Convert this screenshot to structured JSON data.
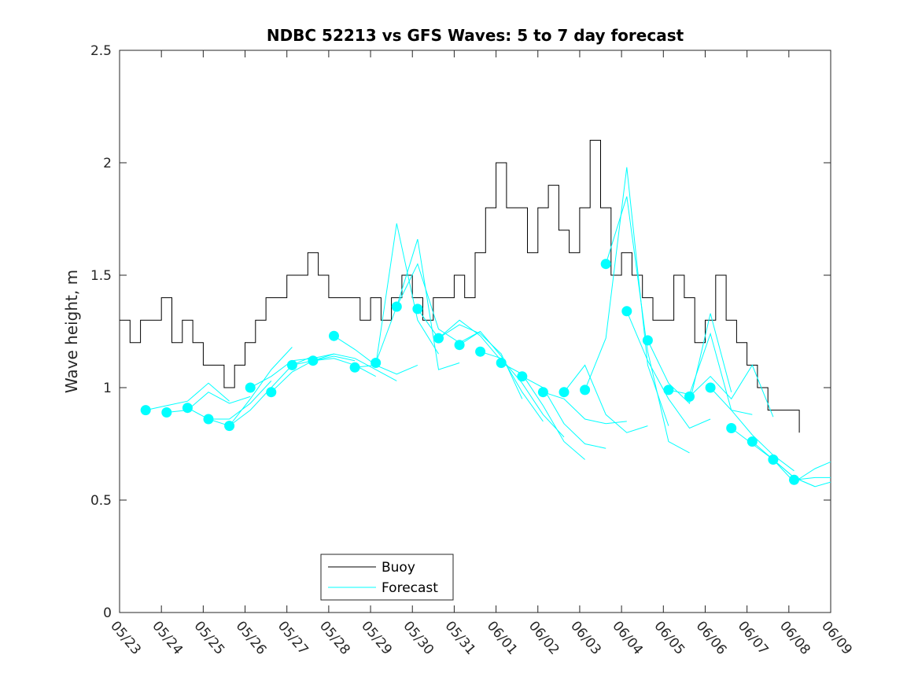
{
  "chart_data": {
    "type": "line",
    "title": "NDBC 52213 vs GFS Waves: 5 to 7 day forecast",
    "xlabel": "",
    "ylabel": "Wave height, m",
    "ylim": [
      0,
      2.5
    ],
    "yticks": [
      "0",
      "0.5",
      "1",
      "1.5",
      "2",
      "2.5"
    ],
    "xlim": [
      "05/23",
      "06/09"
    ],
    "xtick_labels": [
      "05/23",
      "05/24",
      "05/25",
      "05/26",
      "05/27",
      "05/28",
      "05/29",
      "05/30",
      "05/31",
      "06/01",
      "06/02",
      "06/03",
      "06/04",
      "06/05",
      "06/06",
      "06/07",
      "06/08",
      "06/09"
    ],
    "grid": false,
    "legend": {
      "placement": "bottom-left",
      "entries": [
        "Buoy",
        "Forecast"
      ]
    },
    "colors": {
      "buoy": "#000000",
      "forecast": "#00FFFF"
    },
    "buoy": {
      "name": "Buoy",
      "x": [
        "05/23 00:00",
        "05/23 06:00",
        "05/23 12:00",
        "05/23 18:00",
        "05/24 00:00",
        "05/24 06:00",
        "05/24 12:00",
        "05/24 18:00",
        "05/25 00:00",
        "05/25 06:00",
        "05/25 12:00",
        "05/25 18:00",
        "05/26 00:00",
        "05/26 06:00",
        "05/26 12:00",
        "05/26 18:00",
        "05/27 00:00",
        "05/27 06:00",
        "05/27 12:00",
        "05/27 18:00",
        "05/28 00:00",
        "05/28 06:00",
        "05/28 12:00",
        "05/28 18:00",
        "05/29 00:00",
        "05/29 06:00",
        "05/29 12:00",
        "05/29 18:00",
        "05/30 00:00",
        "05/30 06:00",
        "05/30 12:00",
        "05/30 18:00",
        "05/31 00:00",
        "05/31 06:00",
        "05/31 12:00",
        "05/31 18:00",
        "06/01 00:00",
        "06/01 06:00",
        "06/01 12:00",
        "06/01 18:00",
        "06/02 00:00",
        "06/02 06:00",
        "06/02 12:00",
        "06/02 18:00",
        "06/03 00:00",
        "06/03 06:00",
        "06/03 12:00",
        "06/03 18:00",
        "06/04 00:00",
        "06/04 06:00",
        "06/04 12:00",
        "06/04 18:00",
        "06/05 00:00",
        "06/05 06:00",
        "06/05 12:00",
        "06/05 18:00",
        "06/06 00:00",
        "06/06 06:00",
        "06/06 12:00",
        "06/06 18:00",
        "06/07 00:00",
        "06/07 06:00",
        "06/07 12:00",
        "06/07 18:00",
        "06/08 00:00",
        "06/08 06:00"
      ],
      "y": [
        1.3,
        1.2,
        1.3,
        1.3,
        1.4,
        1.2,
        1.3,
        1.2,
        1.1,
        1.1,
        1.0,
        1.1,
        1.2,
        1.3,
        1.4,
        1.4,
        1.5,
        1.5,
        1.6,
        1.5,
        1.4,
        1.4,
        1.4,
        1.3,
        1.4,
        1.3,
        1.4,
        1.5,
        1.4,
        1.3,
        1.4,
        1.4,
        1.5,
        1.4,
        1.6,
        1.8,
        2.0,
        1.8,
        1.8,
        1.6,
        1.8,
        1.9,
        1.7,
        1.6,
        1.8,
        2.1,
        1.8,
        1.5,
        1.6,
        1.5,
        1.4,
        1.3,
        1.3,
        1.5,
        1.4,
        1.2,
        1.3,
        1.5,
        1.3,
        1.2,
        1.1,
        1.0,
        0.9,
        0.9,
        0.9,
        0.8
      ]
    },
    "forecast": {
      "name": "Forecast",
      "markers": {
        "x": [
          "05/23 15:00",
          "05/24 03:00",
          "05/24 15:00",
          "05/25 03:00",
          "05/25 15:00",
          "05/26 03:00",
          "05/26 15:00",
          "05/27 03:00",
          "05/27 15:00",
          "05/28 03:00",
          "05/28 15:00",
          "05/29 03:00",
          "05/29 15:00",
          "05/30 03:00",
          "05/30 15:00",
          "05/31 03:00",
          "05/31 15:00",
          "06/01 03:00",
          "06/01 15:00",
          "06/02 03:00",
          "06/02 15:00",
          "06/03 03:00",
          "06/03 15:00",
          "06/04 03:00",
          "06/04 15:00",
          "06/05 03:00",
          "06/05 15:00",
          "06/06 03:00",
          "06/06 15:00",
          "06/07 03:00",
          "06/07 15:00",
          "06/08 03:00"
        ],
        "y": [
          0.9,
          0.89,
          0.91,
          0.86,
          0.83,
          1.0,
          0.98,
          1.1,
          1.12,
          1.23,
          1.09,
          1.11,
          1.36,
          1.35,
          1.22,
          1.19,
          1.16,
          1.11,
          1.05,
          0.98,
          0.98,
          0.99,
          1.55,
          1.34,
          1.21,
          0.99,
          0.96,
          1.0,
          0.82,
          0.76,
          0.68,
          0.59
        ]
      },
      "runs": [
        {
          "x": [
            "05/23 15:00",
            "05/24 03:00",
            "05/24 15:00",
            "05/25 03:00",
            "05/25 15:00"
          ],
          "y": [
            0.9,
            0.92,
            0.94,
            1.02,
            0.94
          ]
        },
        {
          "x": [
            "05/24 03:00",
            "05/24 15:00",
            "05/25 03:00",
            "05/25 15:00",
            "05/26 03:00"
          ],
          "y": [
            0.89,
            0.9,
            0.98,
            0.93,
            0.96
          ]
        },
        {
          "x": [
            "05/24 15:00",
            "05/25 03:00",
            "05/25 15:00",
            "05/26 03:00",
            "05/26 15:00"
          ],
          "y": [
            0.91,
            0.86,
            0.86,
            0.93,
            1.03
          ]
        },
        {
          "x": [
            "05/25 03:00",
            "05/25 15:00",
            "05/26 03:00",
            "05/26 15:00",
            "05/27 03:00"
          ],
          "y": [
            0.86,
            0.83,
            0.95,
            1.08,
            1.18
          ]
        },
        {
          "x": [
            "05/25 15:00",
            "05/26 03:00",
            "05/26 15:00",
            "05/27 03:00",
            "05/27 15:00"
          ],
          "y": [
            0.83,
            0.9,
            1.0,
            1.1,
            1.14
          ]
        },
        {
          "x": [
            "05/26 03:00",
            "05/26 15:00",
            "05/27 03:00",
            "05/27 15:00",
            "05/28 03:00"
          ],
          "y": [
            1.0,
            1.05,
            1.12,
            1.13,
            1.15
          ]
        },
        {
          "x": [
            "05/26 15:00",
            "05/27 03:00",
            "05/27 15:00",
            "05/28 03:00",
            "05/28 15:00"
          ],
          "y": [
            0.98,
            1.07,
            1.12,
            1.14,
            1.12
          ]
        },
        {
          "x": [
            "05/27 03:00",
            "05/27 15:00",
            "05/28 03:00",
            "05/28 15:00",
            "05/29 03:00"
          ],
          "y": [
            1.1,
            1.12,
            1.13,
            1.1,
            1.05
          ]
        },
        {
          "x": [
            "05/27 15:00",
            "05/28 03:00",
            "05/28 15:00",
            "05/29 03:00",
            "05/29 15:00"
          ],
          "y": [
            1.12,
            1.15,
            1.13,
            1.08,
            1.03
          ]
        },
        {
          "x": [
            "05/28 03:00",
            "05/28 15:00",
            "05/29 03:00",
            "05/29 15:00",
            "05/30 03:00"
          ],
          "y": [
            1.23,
            1.17,
            1.1,
            1.06,
            1.1
          ]
        },
        {
          "x": [
            "05/28 15:00",
            "05/29 03:00",
            "05/29 15:00",
            "05/30 03:00",
            "05/30 15:00"
          ],
          "y": [
            1.09,
            1.1,
            1.73,
            1.3,
            1.15
          ]
        },
        {
          "x": [
            "05/29 03:00",
            "05/29 15:00",
            "05/30 03:00",
            "05/30 15:00",
            "05/31 03:00"
          ],
          "y": [
            1.11,
            1.36,
            1.66,
            1.08,
            1.11
          ]
        },
        {
          "x": [
            "05/29 15:00",
            "05/30 03:00",
            "05/30 15:00",
            "05/31 03:00",
            "05/31 15:00"
          ],
          "y": [
            1.36,
            1.55,
            1.26,
            1.2,
            1.25
          ]
        },
        {
          "x": [
            "05/30 03:00",
            "05/30 15:00",
            "05/31 03:00",
            "05/31 15:00",
            "06/01 03:00"
          ],
          "y": [
            1.35,
            1.22,
            1.3,
            1.23,
            1.12
          ]
        },
        {
          "x": [
            "05/30 15:00",
            "05/31 03:00",
            "05/31 15:00",
            "06/01 03:00",
            "06/01 15:00"
          ],
          "y": [
            1.22,
            1.28,
            1.24,
            1.15,
            0.95
          ]
        },
        {
          "x": [
            "05/31 03:00",
            "05/31 15:00",
            "06/01 03:00",
            "06/01 15:00",
            "06/02 03:00"
          ],
          "y": [
            1.19,
            1.25,
            1.14,
            0.98,
            0.85
          ]
        },
        {
          "x": [
            "05/31 15:00",
            "06/01 03:00",
            "06/01 15:00",
            "06/02 03:00",
            "06/02 15:00"
          ],
          "y": [
            1.16,
            1.13,
            1.02,
            0.88,
            0.78
          ]
        },
        {
          "x": [
            "06/01 03:00",
            "06/01 15:00",
            "06/02 03:00",
            "06/02 15:00",
            "06/03 03:00"
          ],
          "y": [
            1.11,
            1.06,
            0.92,
            0.76,
            0.68
          ]
        },
        {
          "x": [
            "06/01 15:00",
            "06/02 03:00",
            "06/02 15:00",
            "06/03 03:00",
            "06/03 15:00"
          ],
          "y": [
            1.05,
            1.0,
            0.84,
            0.75,
            0.73
          ]
        },
        {
          "x": [
            "06/02 03:00",
            "06/02 15:00",
            "06/03 03:00",
            "06/03 15:00",
            "06/04 03:00"
          ],
          "y": [
            0.98,
            0.95,
            0.86,
            0.84,
            0.85
          ]
        },
        {
          "x": [
            "06/02 15:00",
            "06/03 03:00",
            "06/03 15:00",
            "06/04 03:00",
            "06/04 15:00"
          ],
          "y": [
            0.98,
            1.1,
            0.88,
            0.8,
            0.83
          ]
        },
        {
          "x": [
            "06/03 03:00",
            "06/03 15:00",
            "06/04 03:00",
            "06/04 15:00",
            "06/05 03:00"
          ],
          "y": [
            0.99,
            1.22,
            1.98,
            1.1,
            0.83
          ]
        },
        {
          "x": [
            "06/03 15:00",
            "06/04 03:00",
            "06/04 15:00",
            "06/05 03:00",
            "06/05 15:00"
          ],
          "y": [
            1.55,
            1.85,
            1.16,
            0.76,
            0.71
          ]
        },
        {
          "x": [
            "06/04 03:00",
            "06/04 15:00",
            "06/05 03:00",
            "06/05 15:00",
            "06/06 03:00"
          ],
          "y": [
            1.34,
            1.12,
            0.95,
            0.82,
            0.86
          ]
        },
        {
          "x": [
            "06/04 15:00",
            "06/05 03:00",
            "06/05 15:00",
            "06/06 03:00",
            "06/06 15:00"
          ],
          "y": [
            1.21,
            1.02,
            0.93,
            1.33,
            0.98
          ]
        },
        {
          "x": [
            "06/05 03:00",
            "06/05 15:00",
            "06/06 03:00",
            "06/06 15:00",
            "06/07 03:00"
          ],
          "y": [
            0.99,
            0.97,
            1.24,
            0.9,
            0.88
          ]
        },
        {
          "x": [
            "06/05 15:00",
            "06/06 03:00",
            "06/06 15:00",
            "06/07 03:00",
            "06/07 15:00"
          ],
          "y": [
            0.96,
            1.05,
            0.95,
            1.1,
            0.87
          ]
        },
        {
          "x": [
            "06/06 03:00",
            "06/06 15:00",
            "06/07 03:00",
            "06/07 15:00",
            "06/08 03:00"
          ],
          "y": [
            1.0,
            0.9,
            0.79,
            0.7,
            0.63
          ]
        },
        {
          "x": [
            "06/06 15:00",
            "06/07 03:00",
            "06/07 15:00",
            "06/08 03:00",
            "06/08 15:00"
          ],
          "y": [
            0.82,
            0.75,
            0.68,
            0.6,
            0.56
          ]
        },
        {
          "x": [
            "06/07 03:00",
            "06/07 15:00",
            "06/08 03:00",
            "06/08 15:00",
            "06/09 00:00"
          ],
          "y": [
            0.76,
            0.68,
            0.6,
            0.56,
            0.58
          ]
        },
        {
          "x": [
            "06/07 15:00",
            "06/08 03:00",
            "06/08 15:00",
            "06/09 00:00"
          ],
          "y": [
            0.68,
            0.58,
            0.64,
            0.67
          ]
        },
        {
          "x": [
            "06/08 03:00",
            "06/08 15:00",
            "06/09 00:00"
          ],
          "y": [
            0.59,
            0.6,
            0.6
          ]
        }
      ]
    }
  }
}
